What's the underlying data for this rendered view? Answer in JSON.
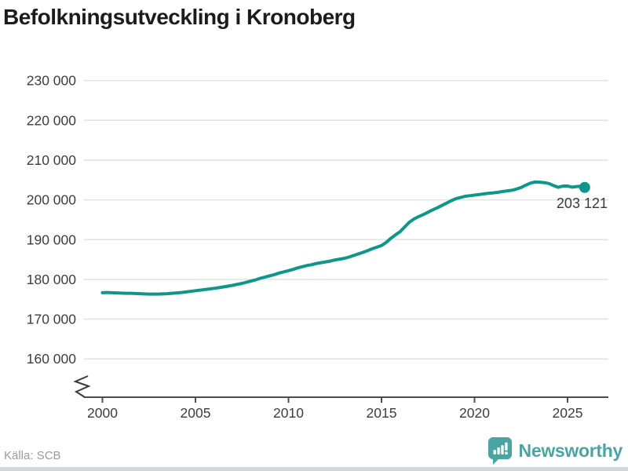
{
  "title": "Befolkningsutveckling i Kronoberg",
  "source_label": "Källa: SCB",
  "branding": {
    "logo_text": "Newsworthy",
    "logo_icon": "bar-chart-bubble-icon"
  },
  "colors": {
    "line": "#0f968b",
    "dot": "#0f968b",
    "grid": "#e2e2e2",
    "axis": "#4d4d4d",
    "tick_label": "#3d3d3d",
    "title": "#1c1c1c",
    "value_label": "#3a3a3a",
    "source": "#9b9b9b",
    "brand_teal": "#4aa4a1",
    "window_edge": "#d2d6d8"
  },
  "chart_data": {
    "type": "line",
    "title": "Befolkningsutveckling i Kronoberg",
    "xlabel": "",
    "ylabel": "",
    "x_ticks": [
      2000,
      2005,
      2010,
      2015,
      2020,
      2025
    ],
    "y_ticks": [
      160000,
      170000,
      180000,
      190000,
      200000,
      210000,
      220000,
      230000
    ],
    "xlim": [
      1999,
      2027.2
    ],
    "ylim": [
      153000,
      233000
    ],
    "axis_break": true,
    "grid": "horizontal",
    "legend": "none",
    "last_value": 203121,
    "last_point_label": "203 121",
    "x_years": {
      "start": 2000,
      "step": 0.25,
      "count": 104,
      "final_x": 2025.92
    },
    "series": [
      {
        "name": "Befolkning i Kronoberg",
        "values": [
          176650,
          176700,
          176650,
          176600,
          176550,
          176500,
          176500,
          176450,
          176400,
          176350,
          176300,
          176300,
          176300,
          176350,
          176400,
          176500,
          176600,
          176700,
          176850,
          177000,
          177150,
          177300,
          177450,
          177600,
          177750,
          177900,
          178100,
          178300,
          178500,
          178750,
          179000,
          179300,
          179600,
          179900,
          180300,
          180600,
          180900,
          181200,
          181600,
          181900,
          182200,
          182500,
          182900,
          183200,
          183500,
          183700,
          184000,
          184200,
          184400,
          184600,
          184900,
          185100,
          185300,
          185600,
          186000,
          186400,
          186800,
          187200,
          187700,
          188100,
          188500,
          189300,
          190300,
          191200,
          192000,
          193200,
          194400,
          195200,
          195800,
          196300,
          196900,
          197500,
          198000,
          198600,
          199200,
          199800,
          200300,
          200600,
          200900,
          201050,
          201200,
          201350,
          201500,
          201650,
          201750,
          201900,
          202100,
          202250,
          202400,
          202700,
          203100,
          203700,
          204200,
          204500,
          204450,
          204350,
          204100,
          203600,
          203150,
          203450,
          203500,
          203200,
          203350,
          203450,
          203121
        ]
      }
    ]
  }
}
